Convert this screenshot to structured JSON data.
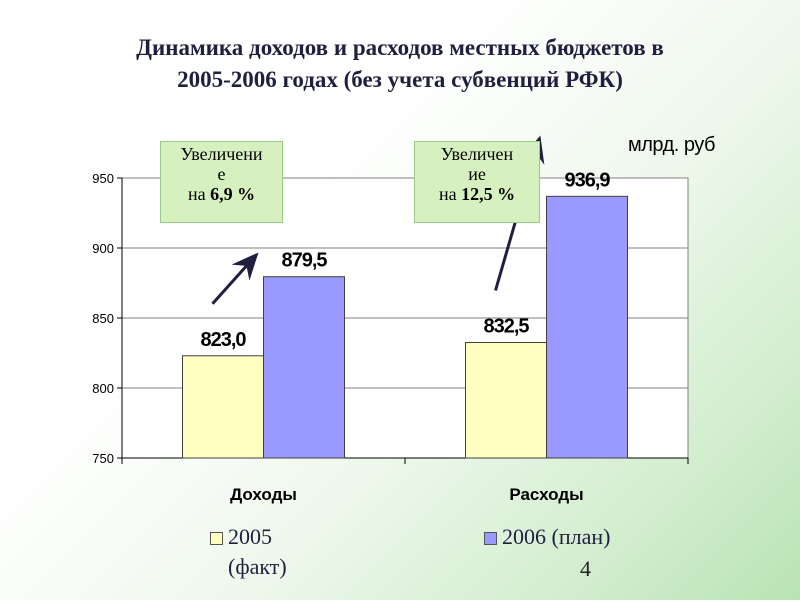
{
  "title_line1": "Динамика доходов и расходов  местных бюджетов в",
  "title_line2": "2005-2006 годах (без учета субвенций РФК)",
  "unit_label": "млрд. руб",
  "callouts": [
    {
      "line1": "Увеличени",
      "line2": "е",
      "prefix": "на ",
      "value": "6,9 %"
    },
    {
      "line1": "Увеличен",
      "line2": "ие",
      "prefix": "на ",
      "value": "12,5 %"
    }
  ],
  "legend": {
    "item1_line1": "2005",
    "item1_line2": "(факт)",
    "item2": "2006 (план)"
  },
  "page_number": "4",
  "chart_data": {
    "type": "bar",
    "categories": [
      "Доходы",
      "Расходы"
    ],
    "series": [
      {
        "name": "2005 (факт)",
        "values": [
          823.0,
          832.5
        ],
        "labels": [
          "823,0",
          "832,5"
        ],
        "color": "#ffffc0"
      },
      {
        "name": "2006 (план)",
        "values": [
          879.5,
          936.9
        ],
        "labels": [
          "879,5",
          "936,9"
        ],
        "color": "#9999ff"
      }
    ],
    "ylim": [
      750,
      950
    ],
    "yticks": [
      750,
      800,
      850,
      900,
      950
    ],
    "grid": true,
    "plot_background": "#ffffff",
    "legend_position": "bottom"
  }
}
